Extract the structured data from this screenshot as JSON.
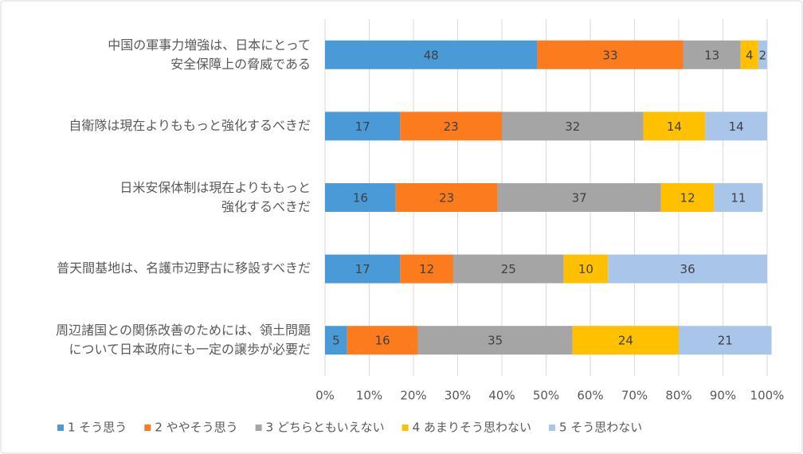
{
  "chart_data": {
    "type": "stacked-barh",
    "categories": [
      "中国の軍事力増強は、日本にとって\n安全保障上の脅威である",
      "自衛隊は現在よりももっと強化するべきだ",
      "日米安保体制は現在よりももっと\n強化するべきだ",
      "普天間基地は、名護市辺野古に移設すべきだ",
      "周辺諸国との関係改善のためには、領土問題\nについて日本政府にも一定の譲歩が必要だ"
    ],
    "series": [
      {
        "name": "1 そう思う",
        "color": "#4a9ad8",
        "values": [
          48,
          17,
          16,
          17,
          5
        ]
      },
      {
        "name": "2 ややそう思う",
        "color": "#fb7b1d",
        "values": [
          33,
          23,
          23,
          12,
          16
        ]
      },
      {
        "name": "3 どちらともいえない",
        "color": "#a5a5a5",
        "values": [
          13,
          32,
          37,
          25,
          35
        ]
      },
      {
        "name": "4 あまりそう思わない",
        "color": "#ffc000",
        "values": [
          4,
          14,
          12,
          10,
          24
        ]
      },
      {
        "name": "5 そう思わない",
        "color": "#a9c5ea",
        "values": [
          2,
          14,
          11,
          36,
          21
        ]
      }
    ],
    "xlim": [
      0,
      100
    ],
    "xticks": [
      {
        "value": 0,
        "label": "0%"
      },
      {
        "value": 10,
        "label": "10%"
      },
      {
        "value": 20,
        "label": "20%"
      },
      {
        "value": 30,
        "label": "30%"
      },
      {
        "value": 40,
        "label": "40%"
      },
      {
        "value": 50,
        "label": "50%"
      },
      {
        "value": 60,
        "label": "60%"
      },
      {
        "value": 70,
        "label": "70%"
      },
      {
        "value": 80,
        "label": "80%"
      },
      {
        "value": 90,
        "label": "90%"
      },
      {
        "value": 100,
        "label": "100%"
      }
    ],
    "grid": true,
    "legend": "bottom"
  }
}
